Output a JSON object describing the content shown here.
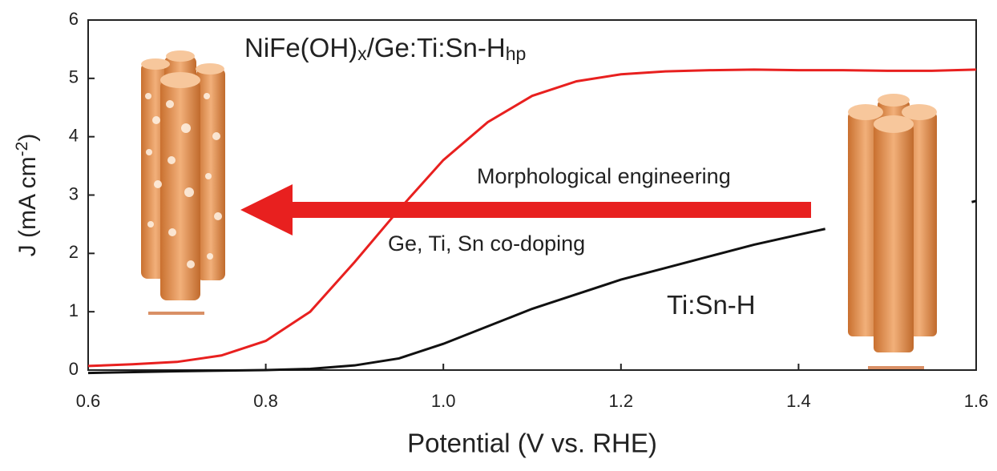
{
  "chart_data": {
    "type": "line",
    "x_label": "Potential (V vs. RHE)",
    "y_label": [
      {
        "text": "J (mA cm"
      },
      {
        "text": "-2",
        "sup": true
      },
      {
        "text": ")"
      }
    ],
    "xlim": [
      0.6,
      1.6
    ],
    "xticks": [
      0.6,
      0.8,
      {
        "value": 1,
        "label": "1.0"
      },
      1.2,
      1.4,
      1.6
    ],
    "ylim": [
      0,
      6
    ],
    "yticks": [
      0,
      1,
      2,
      3,
      4,
      5,
      6
    ],
    "series": [
      {
        "label": [
          {
            "text": "NiFe(OH)"
          },
          {
            "text": "x",
            "sub": true
          },
          {
            "text": "/Ge:Ti:Sn-H"
          },
          {
            "text": "hp",
            "sub": true
          }
        ],
        "color": "#e8201f",
        "x": [
          0.6,
          0.65,
          0.7,
          0.75,
          0.8,
          0.85,
          0.9,
          0.95,
          1.0,
          1.05,
          1.1,
          1.15,
          1.2,
          1.25,
          1.3,
          1.35,
          1.4,
          1.45,
          1.5,
          1.55,
          1.6
        ],
        "values": [
          0.07,
          0.1,
          0.14,
          0.25,
          0.5,
          1.0,
          1.85,
          2.75,
          3.6,
          4.25,
          4.7,
          4.95,
          5.07,
          5.12,
          5.14,
          5.15,
          5.14,
          5.14,
          5.13,
          5.13,
          5.15
        ]
      },
      {
        "label": [
          {
            "text": "Ti:Sn-H"
          }
        ],
        "color": "#111111",
        "x": [
          0.6,
          0.7,
          0.8,
          0.85,
          0.9,
          0.95,
          1.0,
          1.05,
          1.1,
          1.15,
          1.2,
          1.25,
          1.3,
          1.35,
          1.4,
          1.43,
          1.5,
          1.595,
          1.6
        ],
        "values": [
          -0.05,
          -0.02,
          0.0,
          0.02,
          0.08,
          0.2,
          0.45,
          0.75,
          1.05,
          1.3,
          1.55,
          1.75,
          1.95,
          2.15,
          2.32,
          2.42,
          null,
          2.88,
          2.9
        ]
      }
    ],
    "annotations": [
      "Morphological engineering",
      "Ge, Ti, Sn co-doping"
    ]
  }
}
